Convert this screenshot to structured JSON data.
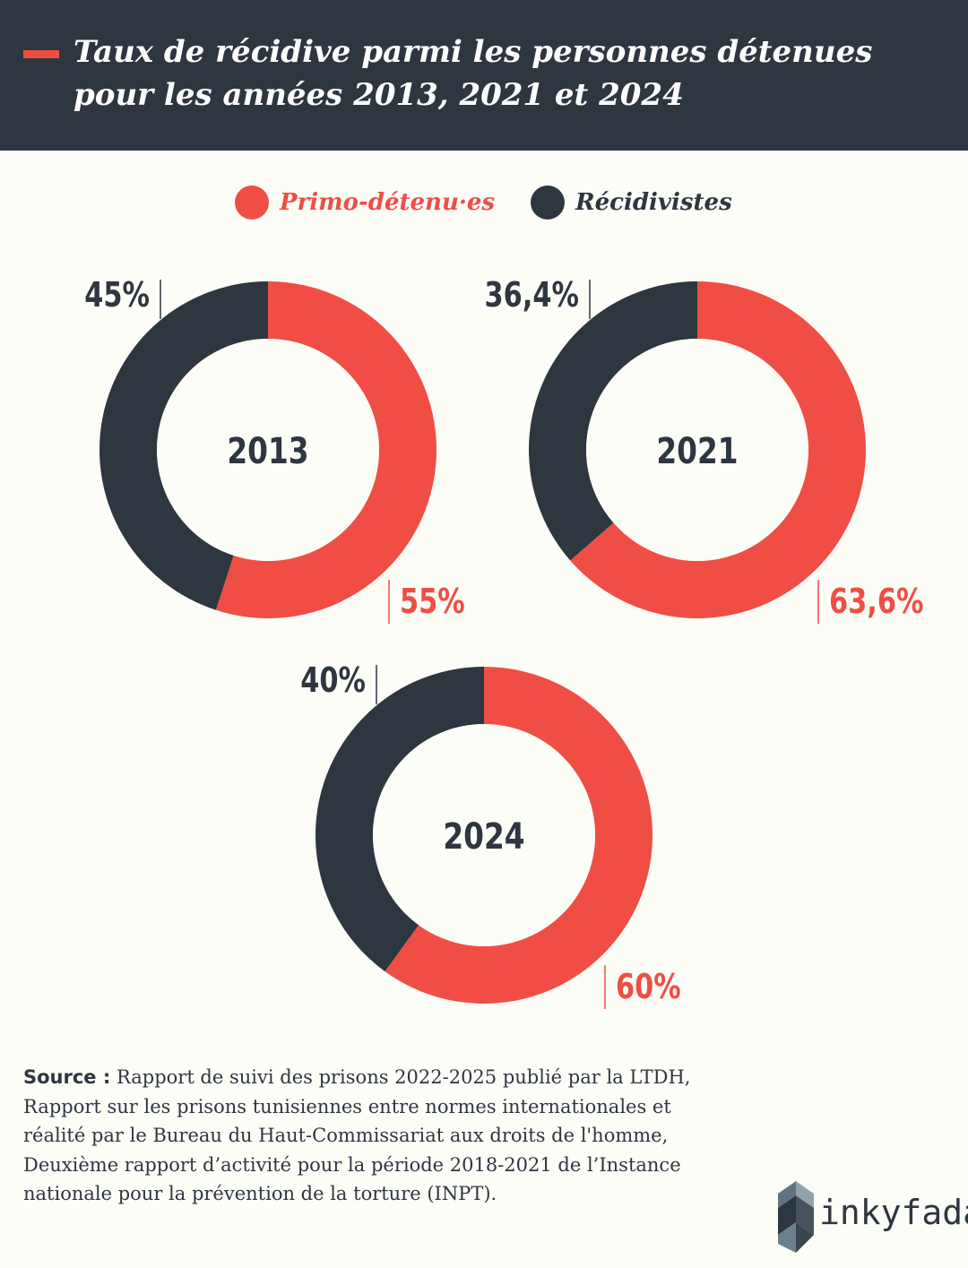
{
  "header": {
    "title": "Taux de récidive parmi les personnes détenues pour les années 2013, 2021 et 2024"
  },
  "legend": [
    {
      "label": "Primo-détenu·es",
      "color": "#f04e44"
    },
    {
      "label": "Récidivistes",
      "color": "#2e3640"
    }
  ],
  "colors": {
    "primo": "#f04e44",
    "recidivistes": "#2e3640",
    "background": "#fdfdf8"
  },
  "chart_data": [
    {
      "type": "pie",
      "center_label": "2013",
      "series": [
        {
          "name": "Primo-détenu·es",
          "value": 55,
          "label": "55%"
        },
        {
          "name": "Récidivistes",
          "value": 45,
          "label": "45%"
        }
      ]
    },
    {
      "type": "pie",
      "center_label": "2021",
      "series": [
        {
          "name": "Primo-détenu·es",
          "value": 63.6,
          "label": "63,6%"
        },
        {
          "name": "Récidivistes",
          "value": 36.4,
          "label": "36,4%"
        }
      ]
    },
    {
      "type": "pie",
      "center_label": "2024",
      "series": [
        {
          "name": "Primo-détenu·es",
          "value": 60,
          "label": "60%"
        },
        {
          "name": "Récidivistes",
          "value": 40,
          "label": "40%"
        }
      ]
    }
  ],
  "source": {
    "label": "Source :",
    "text": " Rapport de suivi des prisons 2022-2025 publié par la LTDH, Rapport sur les prisons tunisiennes entre normes internationales et réalité par le Bureau du Haut-Commissariat aux droits de l'homme, Deuxième rapport d’activité pour la période 2018-2021 de l’Instance nationale pour la prévention de la torture (INPT)."
  },
  "logo": {
    "text": "inkyfada"
  }
}
